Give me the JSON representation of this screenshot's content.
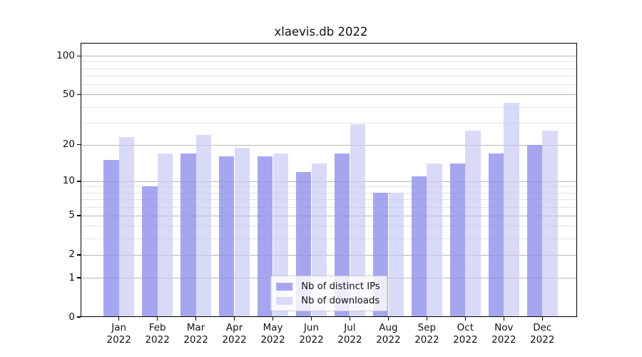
{
  "chart_data": {
    "type": "bar",
    "title": "xlaevis.db 2022",
    "categories": [
      "Jan 2022",
      "Feb 2022",
      "Mar 2022",
      "Apr 2022",
      "May 2022",
      "Jun 2022",
      "Jul 2022",
      "Aug 2022",
      "Sep 2022",
      "Oct 2022",
      "Nov 2022",
      "Dec 2022"
    ],
    "series": [
      {
        "name": "Nb of distinct IPs",
        "color": "#a6a6f0",
        "values": [
          15,
          9,
          17,
          16,
          16,
          12,
          17,
          8,
          11,
          14,
          17,
          20
        ]
      },
      {
        "name": "Nb of downloads",
        "color": "#d9d9f8",
        "values": [
          23,
          17,
          24,
          19,
          17,
          14,
          29,
          8,
          14,
          26,
          43,
          26
        ]
      }
    ],
    "yscale": "log1p",
    "ylim": [
      0,
      126
    ],
    "y_major_ticks": [
      0,
      1,
      2,
      5,
      10,
      20,
      50,
      100
    ],
    "y_minor_gridlines": [
      3,
      4,
      6,
      7,
      8,
      9,
      30,
      40,
      60,
      70,
      80,
      90
    ],
    "grid": "on",
    "legend_position": "lower center"
  },
  "colors": {
    "background": "#ffffff",
    "spine": "#000000",
    "major_grid": "#c9c9c9",
    "minor_grid": "#ececec",
    "tick_label": "#111111",
    "legend_border": "#cccccc"
  }
}
